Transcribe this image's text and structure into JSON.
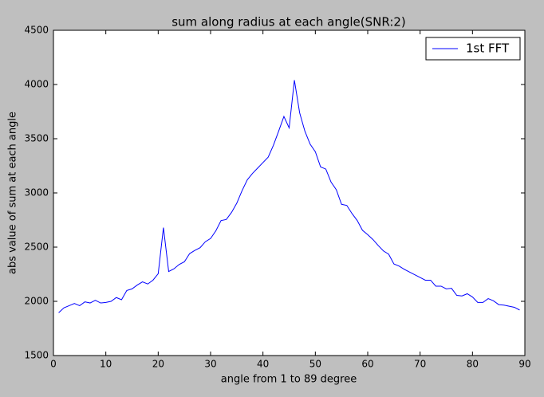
{
  "chart_data": {
    "type": "line",
    "title": "sum along radius at each angle(SNR:2)",
    "xlabel": "angle from 1 to 89 degree",
    "ylabel": "abs value of sum at each angle",
    "x": [
      1,
      2,
      3,
      4,
      5,
      6,
      7,
      8,
      9,
      10,
      11,
      12,
      13,
      14,
      15,
      16,
      17,
      18,
      19,
      20,
      21,
      22,
      23,
      24,
      25,
      26,
      27,
      28,
      29,
      30,
      31,
      32,
      33,
      34,
      35,
      36,
      37,
      38,
      39,
      40,
      41,
      42,
      43,
      44,
      45,
      46,
      47,
      48,
      49,
      50,
      51,
      52,
      53,
      54,
      55,
      56,
      57,
      58,
      59,
      60,
      61,
      62,
      63,
      64,
      65,
      66,
      67,
      68,
      69,
      70,
      71,
      72,
      73,
      74,
      75,
      76,
      77,
      78,
      79,
      80,
      81,
      82,
      83,
      84,
      85,
      86,
      87,
      88,
      89
    ],
    "series": [
      {
        "name": "1st FFT",
        "color": "#0000ff",
        "values": [
          1895,
          1940,
          1960,
          1980,
          1960,
          1995,
          1985,
          2010,
          1985,
          1990,
          2000,
          2035,
          2015,
          2100,
          2115,
          2150,
          2180,
          2160,
          2195,
          2255,
          2680,
          2275,
          2300,
          2340,
          2365,
          2440,
          2470,
          2495,
          2550,
          2580,
          2650,
          2745,
          2755,
          2820,
          2905,
          3020,
          3120,
          3180,
          3230,
          3280,
          3330,
          3440,
          3570,
          3705,
          3600,
          4040,
          3740,
          3570,
          3450,
          3380,
          3240,
          3220,
          3100,
          3030,
          2895,
          2885,
          2810,
          2745,
          2655,
          2615,
          2570,
          2515,
          2465,
          2435,
          2345,
          2325,
          2295,
          2270,
          2245,
          2220,
          2195,
          2195,
          2140,
          2140,
          2115,
          2120,
          2055,
          2050,
          2070,
          2040,
          1990,
          1990,
          2025,
          2005,
          1970,
          1965,
          1955,
          1945,
          1920
        ]
      }
    ],
    "xlim": [
      0,
      90
    ],
    "xticks": [
      0,
      10,
      20,
      30,
      40,
      50,
      60,
      70,
      80,
      90
    ],
    "ylim": [
      1500,
      4500
    ],
    "yticks": [
      1500,
      2000,
      2500,
      3000,
      3500,
      4000,
      4500
    ],
    "legend": "upper right"
  }
}
